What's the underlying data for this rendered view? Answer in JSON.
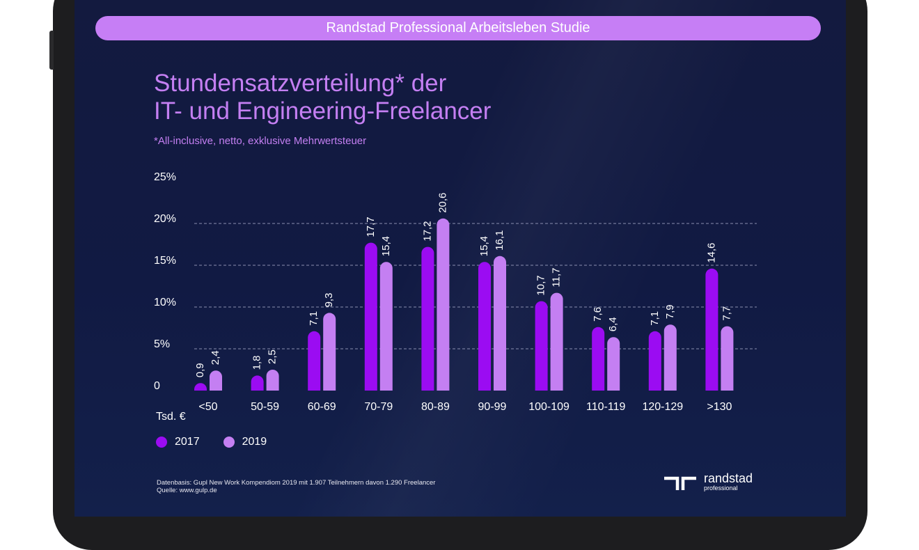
{
  "banner": "Randstad Professional Arbeitsleben Studie",
  "title_lines": [
    "Stundensatzverteilung* der",
    "IT- und Engineering-Freelancer"
  ],
  "subtitle": "*All-inclusive, netto, exklusive Mehrwertsteuer",
  "chart_data": {
    "type": "bar",
    "title": "Stundensatzverteilung* der IT- und Engineering-Freelancer",
    "xlabel": "Tsd. €",
    "ylabel": "",
    "ylim": [
      0,
      25
    ],
    "y_ticks": [
      0,
      5,
      10,
      15,
      20,
      25
    ],
    "y_tick_labels": [
      "0",
      "5%",
      "10%",
      "15%",
      "20%",
      "25%"
    ],
    "gridlines": [
      5,
      10,
      15,
      20
    ],
    "categories": [
      "<50",
      "50-59",
      "60-69",
      "70-79",
      "80-89",
      "90-99",
      "100-109",
      "110-119",
      "120-129",
      ">130"
    ],
    "series": [
      {
        "name": "2017",
        "color": "#9b0cf2",
        "values": [
          0.9,
          1.8,
          7.1,
          17.7,
          17.2,
          15.4,
          10.7,
          7.6,
          7.1,
          14.6
        ],
        "labels": [
          "0,9",
          "1,8",
          "7,1",
          "17,7",
          "17,2",
          "15,4",
          "10,7",
          "7,6",
          "7,1",
          "14,6"
        ]
      },
      {
        "name": "2019",
        "color": "#c47ff2",
        "values": [
          2.4,
          2.5,
          9.3,
          15.4,
          20.6,
          16.1,
          11.7,
          6.4,
          7.9,
          7.7
        ],
        "labels": [
          "2,4",
          "2,5",
          "9,3",
          "15,4",
          "20,6",
          "16,1",
          "11,7",
          "6,4",
          "7,9",
          "7,7"
        ]
      }
    ],
    "legend_position": "bottom-left"
  },
  "footnote": {
    "line1": "Datenbasis: Gupl New Work Kompendiom 2019 mit 1.907 Teilnehmern davon 1.290 Freelancer",
    "line2": "Quelle: www.gulp.de"
  },
  "logo": {
    "name": "randstad",
    "sub": "professional"
  },
  "colors": {
    "accent": "#c67ef5",
    "series_2017": "#9b0cf2",
    "series_2019": "#c47ff2",
    "background": "#131a3f"
  }
}
